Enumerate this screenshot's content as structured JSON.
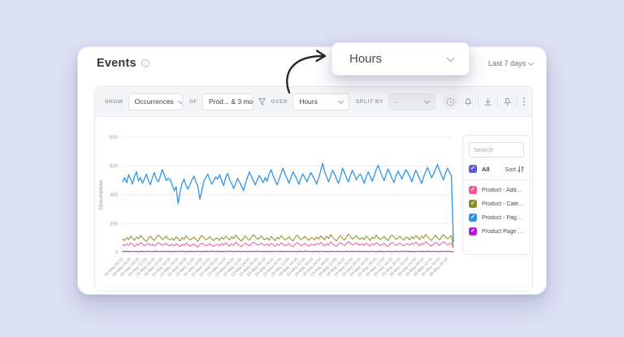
{
  "window": {
    "title": "Events",
    "date_range": "Last 7 days"
  },
  "callout": {
    "label": "Hours"
  },
  "toolbar": {
    "show_label": "SHOW",
    "show_value": "Occurrences",
    "of_label": "OF",
    "of_value": "Prod... & 3 mor",
    "over_label": "OVER",
    "over_value": "Hours",
    "split_by_label": "SPLIT BY",
    "split_by_value": "–"
  },
  "legend": {
    "search_placeholder": "Search",
    "all_label": "All",
    "all_color": "#5b5bd6",
    "sort_label": "Sort",
    "items": [
      {
        "label": "Product - Adde...",
        "color": "#f05a95"
      },
      {
        "label": "Product - Cate...",
        "color": "#8b8d22"
      },
      {
        "label": "Product - Page...",
        "color": "#2e94e9"
      },
      {
        "label": "Product Page -...",
        "color": "#b31ae3"
      }
    ]
  },
  "chart_data": {
    "type": "line",
    "title": "",
    "xlabel": "",
    "ylabel": "Occurrences",
    "ylim": [
      0,
      800
    ],
    "yticks": [
      0,
      200,
      400,
      600,
      800
    ],
    "grid": true,
    "legend_position": "right",
    "x_ticks_every": 4,
    "x_tick_labels": [
      "20-May 00:00",
      "20-May 04:00",
      "20-May 08:00",
      "20-May 12:00",
      "20-May 16:00",
      "20-May 20:00",
      "21-May 00:00",
      "21-May 04:00",
      "21-May 08:00",
      "21-May 12:00",
      "21-May 16:00",
      "21-May 20:00",
      "22-May 00:00",
      "22-May 04:00",
      "22-May 08:00",
      "22-May 12:00",
      "22-May 16:00",
      "22-May 20:00",
      "23-May 00:00",
      "23-May 04:00",
      "23-May 08:00",
      "23-May 12:00",
      "23-May 16:00",
      "23-May 20:00",
      "24-May 00:00",
      "24-May 04:00",
      "24-May 08:00",
      "24-May 12:00",
      "24-May 16:00",
      "24-May 20:00",
      "25-May 00:00",
      "25-May 04:00",
      "25-May 08:00",
      "25-May 12:00",
      "25-May 16:00",
      "25-May 20:00",
      "26-May 00:00",
      "26-May 04:00",
      "26-May 08:00",
      "26-May 12:00",
      "26-May 16:00",
      "26-May 20:00"
    ],
    "series": [
      {
        "name": "Product Page -...",
        "color": "#b31ae3",
        "width": 1,
        "values": [
          8,
          7,
          9,
          6,
          8,
          10,
          7,
          8,
          6,
          9,
          8,
          7,
          8,
          10,
          7,
          6,
          8,
          9,
          7,
          8,
          10,
          8,
          7,
          9,
          7,
          8,
          6,
          9,
          7,
          8,
          10,
          7,
          8,
          6,
          9,
          8,
          7,
          8,
          10,
          7,
          6,
          8,
          9,
          7,
          8,
          10,
          8,
          7,
          9,
          7,
          8,
          6,
          8,
          10,
          7,
          9,
          6,
          8,
          9,
          7,
          8,
          10,
          7,
          6,
          9,
          8,
          7,
          8,
          10,
          8,
          7,
          9,
          7,
          9,
          6,
          8,
          7,
          10,
          8,
          7,
          9,
          6,
          8,
          9,
          7,
          8,
          10,
          7,
          6,
          9,
          8,
          7,
          9,
          10,
          8,
          7,
          8,
          7,
          9,
          6,
          8,
          10,
          7,
          8,
          6,
          9,
          8,
          7,
          8,
          10,
          7,
          6,
          8,
          9,
          7,
          8,
          10,
          8,
          7,
          9,
          7,
          8,
          6,
          9,
          7,
          8,
          10,
          7,
          8,
          6,
          9,
          8,
          7,
          8,
          10,
          7,
          6,
          8,
          9,
          7,
          8,
          10,
          8,
          7,
          9,
          7,
          8,
          6,
          8,
          10,
          7,
          9,
          6,
          8,
          9,
          7,
          8,
          10,
          7,
          6,
          9,
          8,
          7,
          8,
          10,
          8,
          7,
          5
        ]
      },
      {
        "name": "Product - Adde...",
        "color": "#f05a95",
        "width": 1,
        "values": [
          55,
          46,
          60,
          50,
          66,
          56,
          42,
          60,
          50,
          70,
          60,
          46,
          55,
          64,
          50,
          60,
          45,
          56,
          70,
          60,
          50,
          56,
          64,
          50,
          48,
          58,
          44,
          62,
          52,
          40,
          58,
          48,
          66,
          56,
          44,
          52,
          60,
          46,
          38,
          56,
          66,
          58,
          46,
          52,
          62,
          50,
          42,
          56,
          56,
          46,
          62,
          52,
          68,
          56,
          44,
          60,
          50,
          72,
          60,
          48,
          40,
          56,
          66,
          56,
          46,
          60,
          74,
          64,
          52,
          56,
          66,
          52,
          50,
          60,
          46,
          64,
          54,
          42,
          60,
          50,
          68,
          58,
          46,
          54,
          62,
          48,
          40,
          58,
          68,
          60,
          48,
          54,
          64,
          52,
          44,
          58,
          58,
          48,
          64,
          54,
          70,
          58,
          46,
          62,
          52,
          74,
          62,
          50,
          42,
          58,
          68,
          58,
          48,
          62,
          76,
          66,
          54,
          58,
          68,
          54,
          52,
          62,
          48,
          66,
          56,
          44,
          62,
          52,
          70,
          60,
          48,
          56,
          64,
          50,
          42,
          60,
          70,
          62,
          50,
          56,
          66,
          54,
          46,
          60,
          60,
          50,
          66,
          56,
          72,
          60,
          48,
          64,
          54,
          76,
          64,
          52,
          44,
          60,
          70,
          60,
          50,
          64,
          74,
          64,
          54,
          60,
          68,
          30
        ]
      },
      {
        "name": "Product - Cate...",
        "color": "#8b8d22",
        "width": 1,
        "values": [
          95,
          82,
          104,
          90,
          112,
          98,
          85,
          108,
          95,
          118,
          103,
          88,
          76,
          99,
          113,
          95,
          84,
          104,
          122,
          108,
          90,
          99,
          114,
          94,
          88,
          100,
          85,
          110,
          96,
          80,
          104,
          92,
          116,
          100,
          86,
          95,
          108,
          90,
          78,
          102,
          118,
          104,
          88,
          96,
          110,
          94,
          82,
          100,
          98,
          84,
          106,
          92,
          114,
          100,
          86,
          110,
          96,
          120,
          104,
          90,
          78,
          100,
          115,
          96,
          85,
          106,
          124,
          110,
          92,
          100,
          116,
          96,
          90,
          102,
          86,
          112,
          98,
          82,
          106,
          94,
          118,
          102,
          88,
          96,
          110,
          92,
          80,
          104,
          120,
          106,
          90,
          98,
          112,
          96,
          84,
          102,
          100,
          86,
          108,
          94,
          116,
          102,
          88,
          112,
          98,
          125,
          106,
          92,
          80,
          102,
          118,
          98,
          86,
          108,
          128,
          112,
          94,
          102,
          118,
          98,
          92,
          104,
          88,
          114,
          100,
          84,
          108,
          96,
          120,
          104,
          90,
          98,
          112,
          94,
          82,
          106,
          122,
          108,
          92,
          100,
          114,
          98,
          86,
          104,
          102,
          88,
          110,
          96,
          118,
          104,
          90,
          114,
          100,
          126,
          108,
          94,
          82,
          104,
          120,
          100,
          88,
          110,
          124,
          108,
          95,
          104,
          118,
          45
        ]
      },
      {
        "name": "Product - Page...",
        "color": "#2e94e9",
        "width": 1.3,
        "values": [
          490,
          520,
          485,
          540,
          510,
          475,
          530,
          560,
          495,
          520,
          480,
          510,
          545,
          500,
          470,
          520,
          555,
          510,
          490,
          530,
          575,
          540,
          500,
          515,
          505,
          470,
          430,
          455,
          340,
          420,
          480,
          510,
          465,
          440,
          475,
          505,
          530,
          490,
          460,
          370,
          430,
          495,
          520,
          545,
          505,
          475,
          500,
          525,
          510,
          540,
          495,
          465,
          520,
          550,
          505,
          480,
          445,
          475,
          515,
          490,
          460,
          430,
          480,
          520,
          560,
          530,
          495,
          470,
          505,
          535,
          510,
          485,
          520,
          495,
          545,
          575,
          530,
          500,
          470,
          510,
          550,
          585,
          545,
          515,
          480,
          520,
          560,
          535,
          505,
          475,
          515,
          545,
          520,
          490,
          525,
          555,
          530,
          505,
          475,
          520,
          565,
          620,
          560,
          525,
          490,
          530,
          570,
          545,
          510,
          480,
          525,
          585,
          555,
          520,
          490,
          535,
          570,
          540,
          505,
          530,
          545,
          515,
          480,
          525,
          560,
          530,
          495,
          530,
          575,
          605,
          565,
          530,
          500,
          540,
          580,
          550,
          515,
          485,
          530,
          565,
          540,
          510,
          545,
          575,
          555,
          525,
          490,
          535,
          570,
          545,
          510,
          480,
          525,
          560,
          590,
          555,
          520,
          545,
          580,
          610,
          570,
          535,
          505,
          550,
          585,
          560,
          530,
          75
        ]
      }
    ]
  }
}
